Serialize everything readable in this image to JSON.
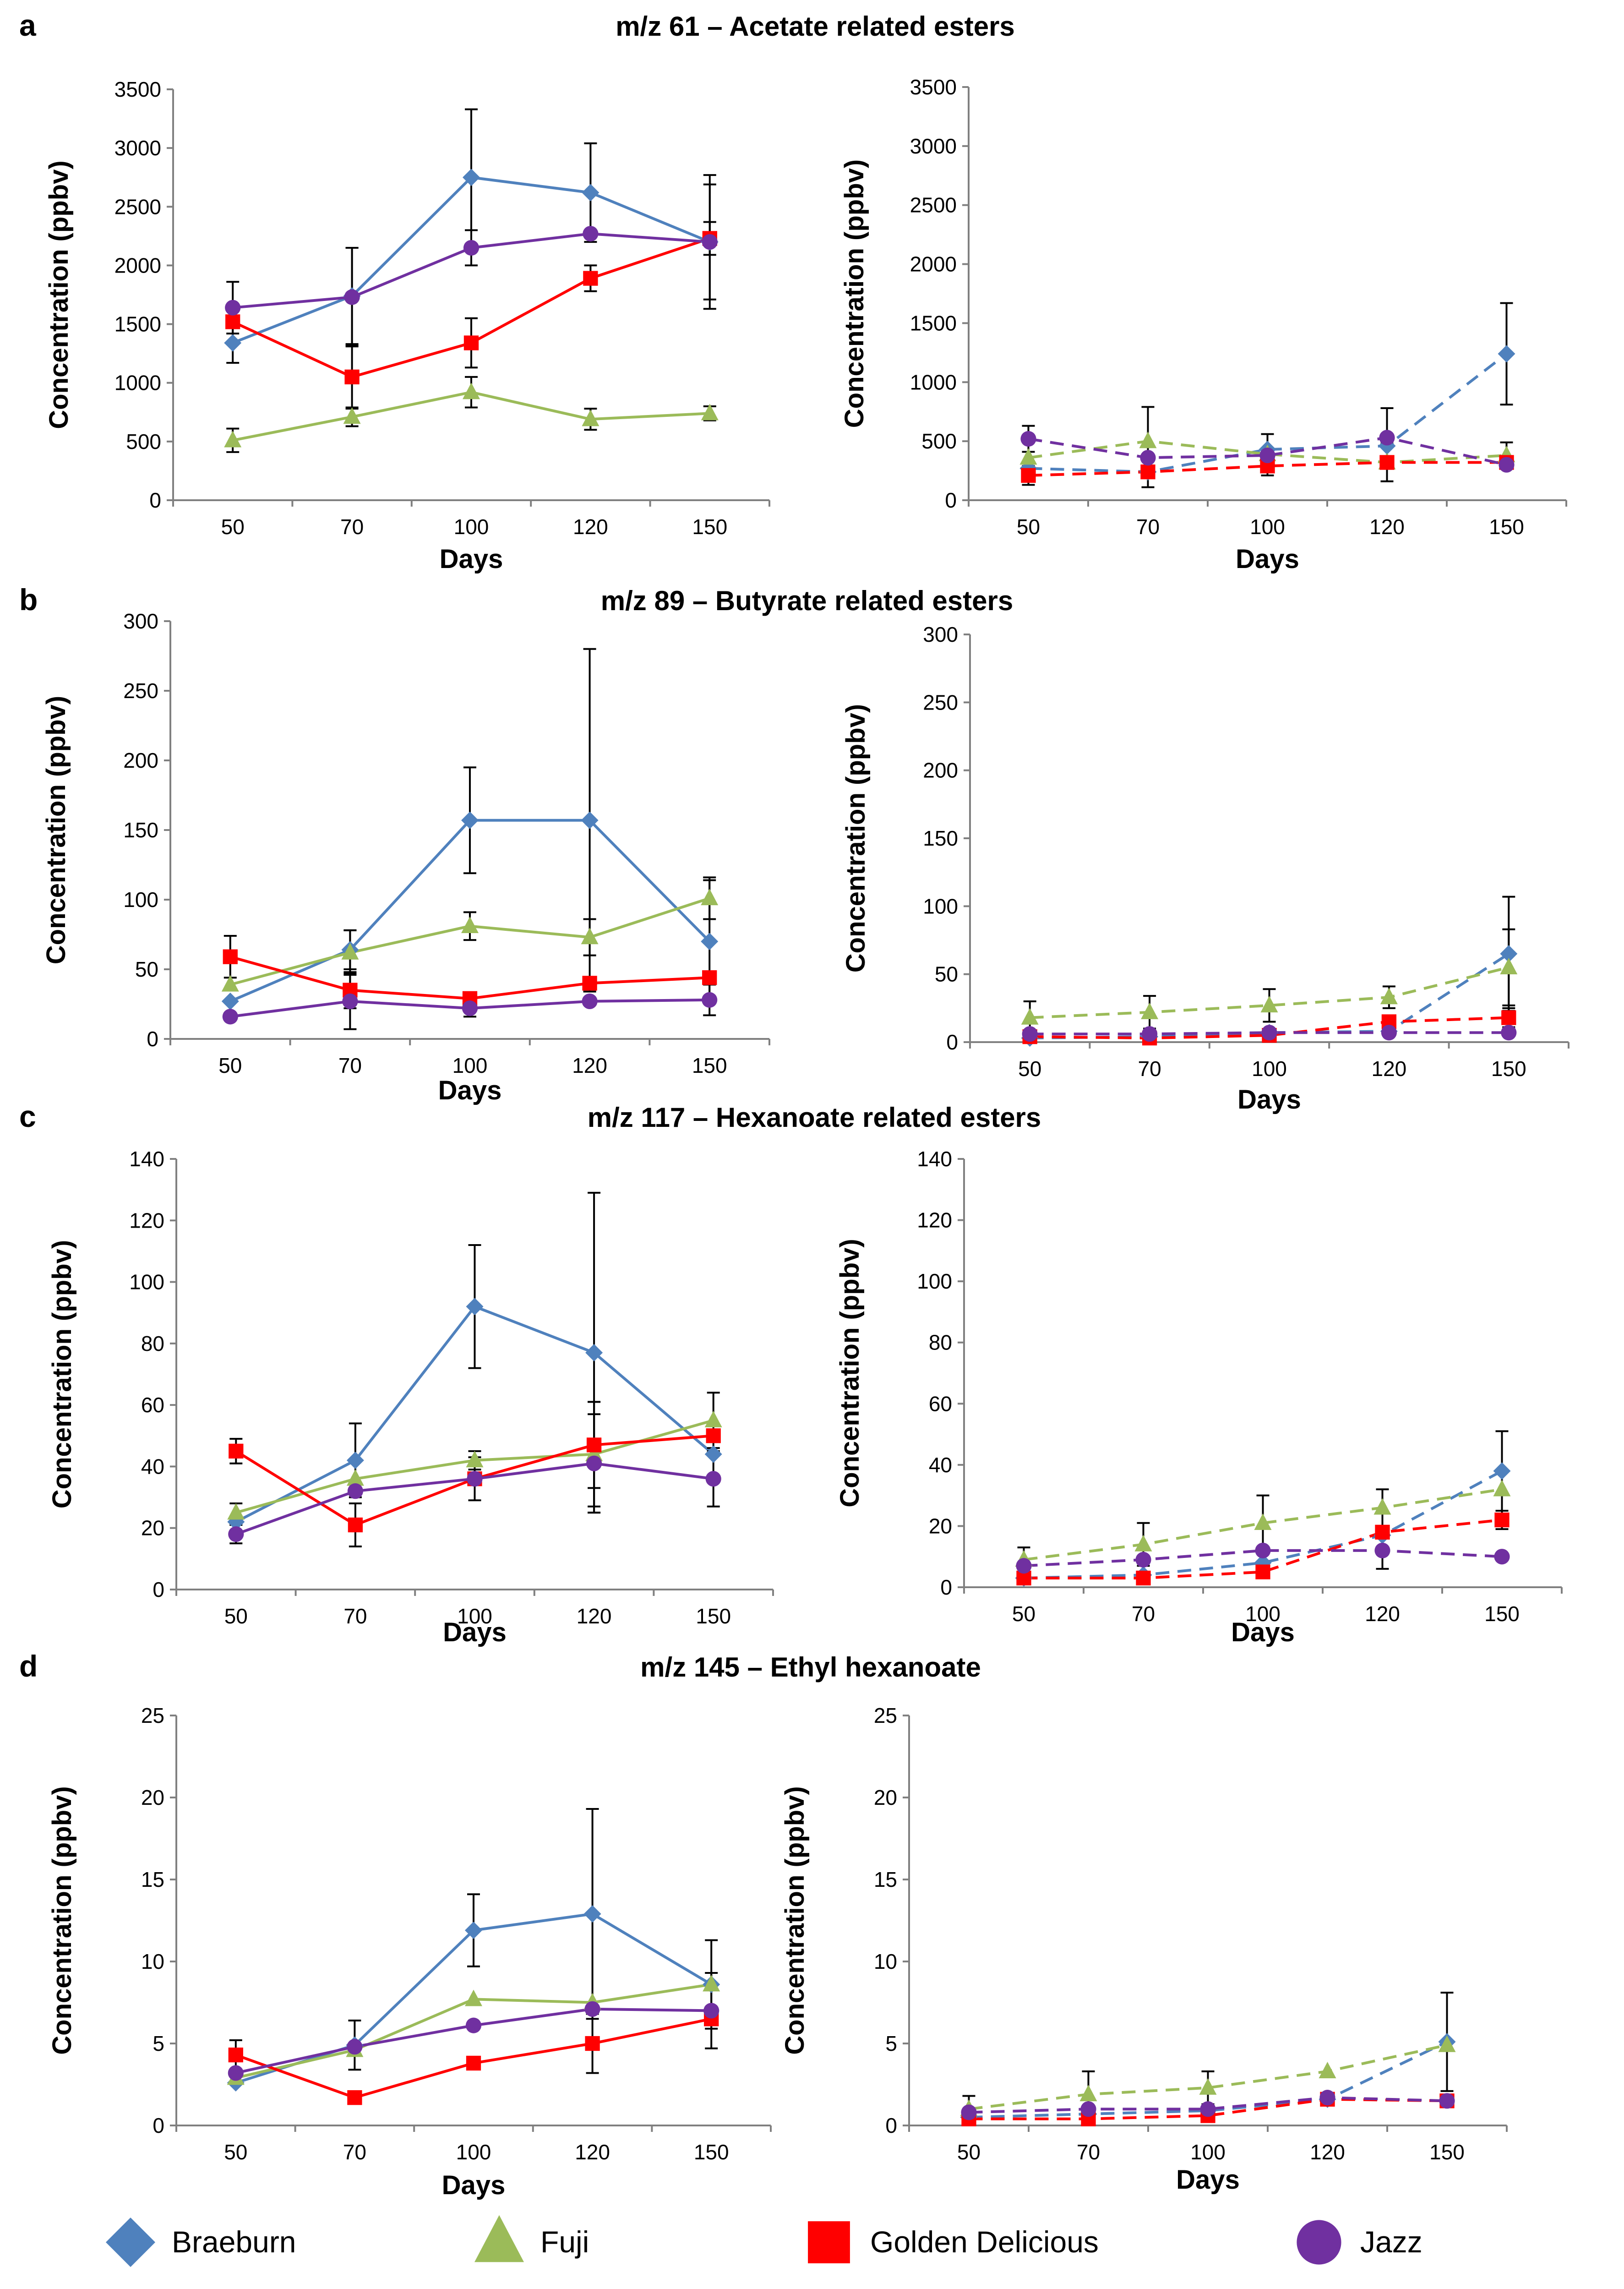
{
  "figure": {
    "legend": [
      {
        "name": "Braeburn",
        "color": "#4f81bd",
        "marker": "diamond"
      },
      {
        "name": "Fuji",
        "color": "#9bbb59",
        "marker": "triangle"
      },
      {
        "name": "Golden Delicious",
        "color": "#ff0000",
        "marker": "square"
      },
      {
        "name": "Jazz",
        "color": "#7030a0",
        "marker": "circle"
      }
    ]
  },
  "chart_data": [
    {
      "panel": "a",
      "title": "m/z  61 – Acetate related esters",
      "type": "line",
      "xlabel": "Days",
      "ylabel": "Concentration (ppbv)",
      "categories": [
        "50",
        "70",
        "100",
        "120",
        "150"
      ],
      "left": {
        "ylim": [
          0,
          3500
        ],
        "ticks": [
          0,
          500,
          1000,
          1500,
          2000,
          2500,
          3000,
          3500
        ],
        "line_style": "solid",
        "series": [
          {
            "name": "Braeburn",
            "values": [
              1340,
              1740,
              2750,
              2620,
              2200
            ],
            "errors": [
              170,
              410,
              580,
              420,
              570
            ]
          },
          {
            "name": "Fuji",
            "values": [
              510,
              710,
              920,
              690,
              740
            ],
            "errors": [
              100,
              80,
              130,
              90,
              60
            ]
          },
          {
            "name": "Golden Delicious",
            "values": [
              1520,
              1050,
              1340,
              1890,
              2230
            ],
            "errors": [
              0,
              270,
              210,
              110,
              140
            ]
          },
          {
            "name": "Jazz",
            "values": [
              1640,
              1730,
              2150,
              2270,
              2200
            ],
            "errors": [
              220,
              420,
              150,
              0,
              490
            ]
          }
        ]
      },
      "right": {
        "ylim": [
          0,
          3500
        ],
        "ticks": [
          0,
          500,
          1000,
          1500,
          2000,
          2500,
          3000,
          3500
        ],
        "line_style": "dashed",
        "series": [
          {
            "name": "Braeburn",
            "values": [
              270,
              240,
              430,
              460,
              1240
            ],
            "errors": [
              0,
              0,
              130,
              0,
              430
            ]
          },
          {
            "name": "Fuji",
            "values": [
              360,
              500,
              390,
              320,
              380
            ],
            "errors": [
              0,
              290,
              0,
              0,
              110
            ]
          },
          {
            "name": "Golden Delicious",
            "values": [
              210,
              240,
              290,
              320,
              320
            ],
            "errors": [
              80,
              130,
              80,
              160,
              0
            ]
          },
          {
            "name": "Jazz",
            "values": [
              520,
              360,
              380,
              530,
              300
            ],
            "errors": [
              110,
              0,
              0,
              250,
              0
            ]
          }
        ]
      }
    },
    {
      "panel": "b",
      "title": "m/z  89 – Butyrate related esters",
      "type": "line",
      "xlabel": "Days",
      "ylabel": "Concentration (ppbv)",
      "categories": [
        "50",
        "70",
        "100",
        "120",
        "150"
      ],
      "left": {
        "ylim": [
          0,
          300
        ],
        "ticks": [
          0,
          50,
          100,
          150,
          200,
          250,
          300
        ],
        "line_style": "solid",
        "series": [
          {
            "name": "Braeburn",
            "values": [
              27,
              64,
              157,
              157,
              70
            ],
            "errors": [
              0,
              14,
              38,
              123,
              44
            ]
          },
          {
            "name": "Fuji",
            "values": [
              39,
              62,
              81,
              73,
              101
            ],
            "errors": [
              0,
              16,
              10,
              13,
              15
            ]
          },
          {
            "name": "Golden Delicious",
            "values": [
              59,
              35,
              29,
              40,
              44
            ],
            "errors": [
              15,
              13,
              0,
              0,
              0
            ]
          },
          {
            "name": "Jazz",
            "values": [
              16,
              27,
              22,
              27,
              28
            ],
            "errors": [
              0,
              20,
              6,
              0,
              11
            ]
          }
        ]
      },
      "right": {
        "ylim": [
          0,
          300
        ],
        "ticks": [
          0,
          50,
          100,
          150,
          200,
          250,
          300
        ],
        "line_style": "dashed",
        "series": [
          {
            "name": "Braeburn",
            "values": [
              3,
              4,
              7,
              8,
              65
            ],
            "errors": [
              0,
              0,
              0,
              0,
              42
            ]
          },
          {
            "name": "Fuji",
            "values": [
              18,
              22,
              27,
              33,
              55
            ],
            "errors": [
              12,
              12,
              12,
              8,
              28
            ]
          },
          {
            "name": "Golden Delicious",
            "values": [
              4,
              3,
              5,
              15,
              18
            ],
            "errors": [
              0,
              0,
              0,
              0,
              7
            ]
          },
          {
            "name": "Jazz",
            "values": [
              6,
              6,
              7,
              7,
              7
            ],
            "errors": [
              0,
              0,
              0,
              0,
              0
            ]
          }
        ]
      }
    },
    {
      "panel": "c",
      "title": "m/z  117 – Hexanoate related esters",
      "type": "line",
      "xlabel": "Days",
      "ylabel": "Concentration (ppbv)",
      "categories": [
        "50",
        "70",
        "100",
        "120",
        "150"
      ],
      "left": {
        "ylim": [
          0,
          140
        ],
        "ticks": [
          0,
          20,
          40,
          60,
          80,
          100,
          120,
          140
        ],
        "line_style": "solid",
        "series": [
          {
            "name": "Braeburn",
            "values": [
              22,
              42,
              92,
              77,
              44
            ],
            "errors": [
              0,
              12,
              20,
              52,
              0
            ]
          },
          {
            "name": "Fuji",
            "values": [
              25,
              36,
              42,
              44,
              55
            ],
            "errors": [
              3,
              0,
              3,
              17,
              9
            ]
          },
          {
            "name": "Golden Delicious",
            "values": [
              45,
              21,
              36,
              47,
              50
            ],
            "errors": [
              4,
              7,
              0,
              14,
              0
            ]
          },
          {
            "name": "Jazz",
            "values": [
              18,
              32,
              36,
              41,
              36
            ],
            "errors": [
              3,
              0,
              7,
              16,
              9
            ]
          }
        ]
      },
      "right": {
        "ylim": [
          0,
          140
        ],
        "ticks": [
          0,
          20,
          40,
          60,
          80,
          100,
          120,
          140
        ],
        "line_style": "dashed",
        "series": [
          {
            "name": "Braeburn",
            "values": [
              3,
              4,
              8,
              17,
              38
            ],
            "errors": [
              0,
              0,
              0,
              0,
              13
            ]
          },
          {
            "name": "Fuji",
            "values": [
              9,
              14,
              21,
              26,
              32
            ],
            "errors": [
              4,
              7,
              9,
              6,
              0
            ]
          },
          {
            "name": "Golden Delicious",
            "values": [
              3,
              3,
              5,
              18,
              22
            ],
            "errors": [
              0,
              0,
              0,
              0,
              3
            ]
          },
          {
            "name": "Jazz",
            "values": [
              7,
              9,
              12,
              12,
              10
            ],
            "errors": [
              0,
              0,
              0,
              6,
              0
            ]
          }
        ]
      }
    },
    {
      "panel": "d",
      "title": "m/z  145 – Ethyl hexanoate",
      "type": "line",
      "xlabel": "Days",
      "ylabel": "Concentration (ppbv)",
      "categories": [
        "50",
        "70",
        "100",
        "120",
        "150"
      ],
      "left": {
        "ylim": [
          0,
          25
        ],
        "ticks": [
          0,
          5,
          10,
          15,
          20,
          25
        ],
        "line_style": "solid",
        "series": [
          {
            "name": "Braeburn",
            "values": [
              2.6,
              4.9,
              11.9,
              12.9,
              8.6
            ],
            "errors": [
              0,
              1.5,
              2.2,
              6.4,
              2.7
            ]
          },
          {
            "name": "Fuji",
            "values": [
              2.9,
              4.6,
              7.7,
              7.5,
              8.6
            ],
            "errors": [
              0,
              0,
              0,
              0,
              0
            ]
          },
          {
            "name": "Golden Delicious",
            "values": [
              4.3,
              1.7,
              3.8,
              5.0,
              6.5
            ],
            "errors": [
              0.9,
              0,
              0,
              1.8,
              0
            ]
          },
          {
            "name": "Jazz",
            "values": [
              3.2,
              4.8,
              6.1,
              7.1,
              7.0
            ],
            "errors": [
              0,
              0,
              0,
              0,
              2.3
            ]
          }
        ]
      },
      "right": {
        "ylim": [
          0,
          25
        ],
        "ticks": [
          0,
          5,
          10,
          15,
          20,
          25
        ],
        "line_style": "dashed",
        "series": [
          {
            "name": "Braeburn",
            "values": [
              0.5,
              0.7,
              0.9,
              1.6,
              5.1
            ],
            "errors": [
              0,
              0,
              0,
              0,
              3.0
            ]
          },
          {
            "name": "Fuji",
            "values": [
              1.0,
              1.9,
              2.3,
              3.3,
              4.9
            ],
            "errors": [
              0.8,
              1.4,
              1.0,
              0,
              0
            ]
          },
          {
            "name": "Golden Delicious",
            "values": [
              0.4,
              0.4,
              0.6,
              1.6,
              1.5
            ],
            "errors": [
              0,
              0,
              0,
              0,
              0
            ]
          },
          {
            "name": "Jazz",
            "values": [
              0.8,
              1.0,
              1.0,
              1.7,
              1.5
            ],
            "errors": [
              0,
              0,
              0,
              0,
              0
            ]
          }
        ]
      }
    }
  ]
}
